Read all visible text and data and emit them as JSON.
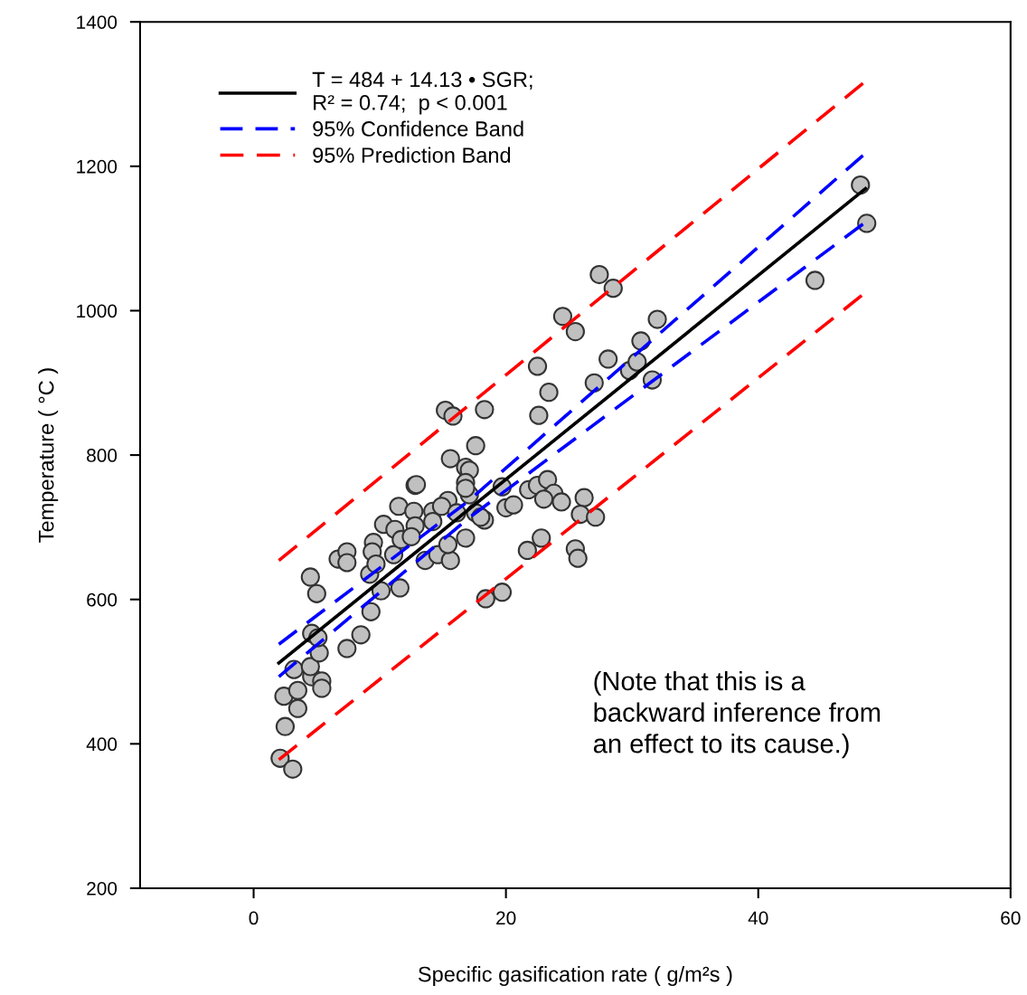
{
  "chart_data": {
    "type": "scatter",
    "xlabel": "Specific gasification rate ( g/m²s )",
    "ylabel": "Temperature ( °C )",
    "xlim": [
      -9,
      60
    ],
    "xticks": [
      0,
      20,
      40,
      60
    ],
    "ylim": [
      200,
      1400
    ],
    "yticks": [
      200,
      400,
      600,
      800,
      1000,
      1200,
      1400
    ],
    "grid": false,
    "legend": "top left",
    "annotations": [
      "(Note that this is a\nbackward inference from\nan effect to its cause.)"
    ],
    "series": [
      {
        "color": "#c0c0c0",
        "marker": "circle",
        "x": [
          2.1,
          3.1,
          2.5,
          3.5,
          2.4,
          3.5,
          3.2,
          4.6,
          5.4,
          5.4,
          4.5,
          4.6,
          5.2,
          5.1,
          7.4,
          8.5,
          4.5,
          5.0,
          6.7,
          7.4,
          7.4,
          9.3,
          9.2,
          9.5,
          9.4,
          9.7,
          10.1,
          10.3,
          11.2,
          11.5,
          12.8,
          11.6,
          11.1,
          15.2,
          15.8,
          18.3,
          23.4,
          22.6,
          17.6,
          15.6,
          16.8,
          17.1,
          12.9,
          16.8,
          15.4,
          14.2,
          12.7,
          12.8,
          11.7,
          13.6,
          14.6,
          15.6,
          16.8,
          15.4,
          18.3,
          17.6,
          20.0,
          20.6,
          19.7,
          21.8,
          22.5,
          23.3,
          23.8,
          23.0,
          24.4,
          26.2,
          25.9,
          27.1,
          25.5,
          25.7,
          21.7,
          22.8,
          18.4,
          19.7,
          17.1,
          14.9,
          16.1,
          18.0,
          14.2,
          12.5,
          16.8,
          24.5,
          25.5,
          32.0,
          22.5,
          28.1,
          30.7,
          27.0,
          29.8,
          30.4,
          31.6,
          27.4,
          28.5,
          48.6,
          48.1,
          44.5
        ],
        "values": [
          380,
          365,
          424,
          449,
          466,
          474,
          503,
          493,
          487,
          477,
          507,
          553,
          526,
          547,
          532,
          551,
          631,
          608,
          656,
          666,
          651,
          583,
          635,
          679,
          666,
          649,
          612,
          704,
          697,
          729,
          758,
          616,
          662,
          862,
          854,
          863,
          887,
          855,
          813,
          795,
          783,
          779,
          759,
          762,
          737,
          722,
          722,
          702,
          683,
          654,
          662,
          654,
          685,
          676,
          710,
          720,
          727,
          731,
          756,
          752,
          758,
          766,
          747,
          739,
          735,
          741,
          718,
          714,
          670,
          657,
          668,
          685,
          601,
          610,
          745,
          729,
          720,
          714,
          708,
          687,
          754,
          992,
          971,
          988,
          923,
          933,
          958,
          900,
          917,
          929,
          904,
          1050,
          1031,
          1121,
          1174,
          1042
        ]
      },
      {
        "type": "line",
        "name": "T = 484 + 14.13 • SGR;\nR² = 0.74;  p < 0.001",
        "color": "#000000",
        "line_style": "solid",
        "x": [
          2.0,
          48.5
        ],
        "values": [
          512,
          1169
        ]
      },
      {
        "type": "line",
        "name": "95% Confidence Band",
        "color": "#0000ff",
        "line_style": "dashed",
        "x": [
          2.0,
          17.0,
          48.3
        ],
        "values": [
          538,
          736,
          1215
        ]
      },
      {
        "type": "line",
        "color": "#0000ff",
        "line_style": "dashed",
        "x": [
          2.0,
          17.0,
          48.3
        ],
        "values": [
          493,
          712,
          1120
        ]
      },
      {
        "type": "line",
        "name": "95% Prediction Band",
        "color": "#ff0000",
        "line_style": "dashed",
        "x": [
          2.0,
          48.3
        ],
        "values": [
          654,
          1315
        ]
      },
      {
        "type": "line",
        "color": "#ff0000",
        "line_style": "dashed",
        "x": [
          2.0,
          48.2
        ],
        "values": [
          378,
          1021
        ]
      }
    ]
  }
}
